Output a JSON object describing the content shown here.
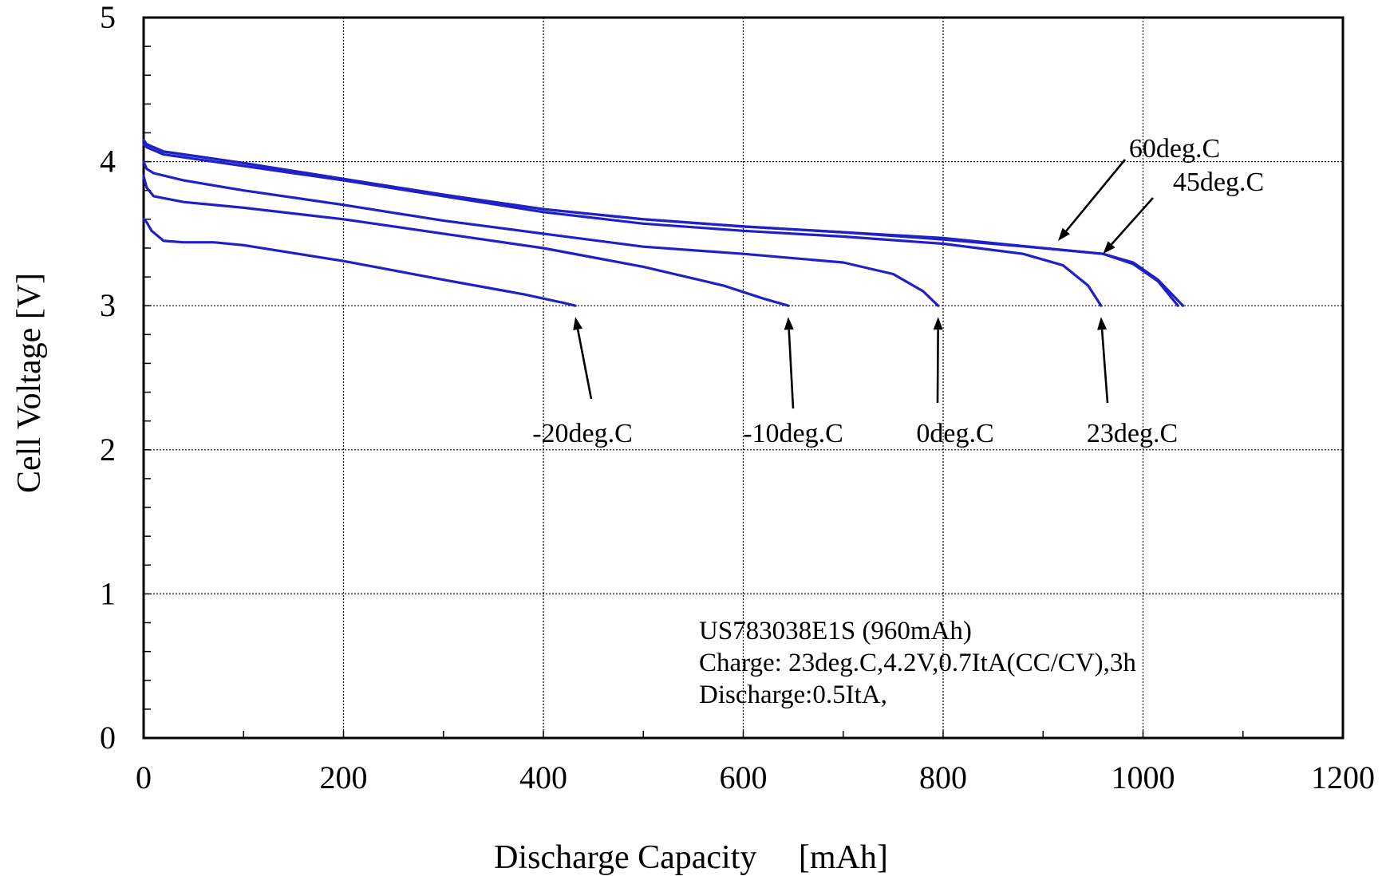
{
  "chart_data": {
    "type": "line",
    "xlabel": "Discharge Capacity     [mAh]",
    "ylabel": "Cell Voltage [V]",
    "xlim": [
      0,
      1200
    ],
    "ylim": [
      0,
      5
    ],
    "xticks": [
      0,
      200,
      400,
      600,
      800,
      1000,
      1200
    ],
    "yticks": [
      0,
      1,
      2,
      3,
      4,
      5
    ],
    "grid": true,
    "line_color": "#2020c8",
    "series": [
      {
        "name": "-20deg.C",
        "x": [
          0,
          3,
          8,
          20,
          40,
          70,
          100,
          200,
          300,
          380,
          420,
          432
        ],
        "y": [
          3.6,
          3.58,
          3.52,
          3.45,
          3.44,
          3.44,
          3.42,
          3.31,
          3.18,
          3.08,
          3.02,
          3.0
        ]
      },
      {
        "name": "-10deg.C",
        "x": [
          0,
          3,
          10,
          40,
          100,
          200,
          300,
          400,
          500,
          580,
          620,
          645
        ],
        "y": [
          3.9,
          3.82,
          3.76,
          3.72,
          3.68,
          3.6,
          3.5,
          3.4,
          3.27,
          3.14,
          3.05,
          3.0
        ]
      },
      {
        "name": "0deg.C",
        "x": [
          0,
          3,
          10,
          40,
          100,
          200,
          300,
          400,
          500,
          600,
          700,
          750,
          780,
          795
        ],
        "y": [
          4.0,
          3.95,
          3.92,
          3.87,
          3.8,
          3.7,
          3.59,
          3.5,
          3.41,
          3.36,
          3.3,
          3.22,
          3.1,
          3.0
        ]
      },
      {
        "name": "23deg.C",
        "x": [
          0,
          3,
          20,
          100,
          200,
          300,
          400,
          500,
          600,
          700,
          800,
          880,
          920,
          945,
          958
        ],
        "y": [
          4.12,
          4.1,
          4.05,
          3.97,
          3.87,
          3.76,
          3.65,
          3.57,
          3.52,
          3.48,
          3.43,
          3.36,
          3.28,
          3.14,
          3.0
        ]
      },
      {
        "name": "45deg.C",
        "x": [
          0,
          3,
          20,
          100,
          200,
          300,
          400,
          500,
          600,
          700,
          800,
          900,
          960,
          990,
          1015,
          1040
        ],
        "y": [
          4.15,
          4.12,
          4.07,
          3.99,
          3.88,
          3.77,
          3.67,
          3.6,
          3.55,
          3.51,
          3.46,
          3.4,
          3.36,
          3.3,
          3.18,
          3.0
        ]
      },
      {
        "name": "60deg.C",
        "x": [
          0,
          3,
          20,
          100,
          200,
          300,
          400,
          500,
          600,
          700,
          800,
          900,
          960,
          990,
          1015,
          1035
        ],
        "y": [
          4.15,
          4.12,
          4.07,
          3.99,
          3.88,
          3.77,
          3.67,
          3.6,
          3.55,
          3.51,
          3.47,
          3.4,
          3.36,
          3.29,
          3.17,
          3.0
        ]
      }
    ],
    "annotations": [
      {
        "text": "-20deg.C",
        "tip": [
          432,
          3.0
        ]
      },
      {
        "text": "-10deg.C",
        "tip": [
          645,
          3.0
        ]
      },
      {
        "text": "0deg.C",
        "tip": [
          795,
          3.0
        ]
      },
      {
        "text": "23deg.C",
        "tip": [
          958,
          3.0
        ]
      },
      {
        "text": "60deg.C",
        "tip": [
          915,
          3.45
        ]
      },
      {
        "text": "45deg.C",
        "tip": [
          960,
          3.36
        ]
      }
    ],
    "note_lines": [
      "US783038E1S (960mAh)",
      "Charge: 23deg.C,4.2V,0.7ItA(CC/CV),3h",
      "Discharge:0.5ItA,"
    ]
  }
}
